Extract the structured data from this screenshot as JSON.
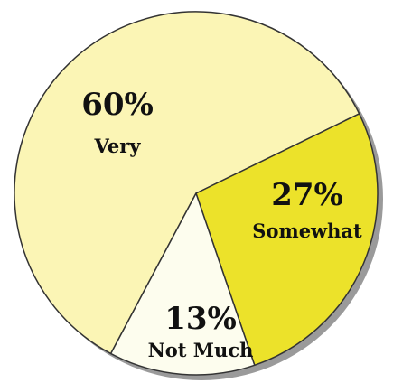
{
  "chart_data": {
    "type": "pie",
    "slices": [
      {
        "label": "Very",
        "value": 60,
        "value_label": "60%",
        "color": "#fbf5b5"
      },
      {
        "label": "Somewhat",
        "value": 27,
        "value_label": "27%",
        "color": "#ece22a"
      },
      {
        "label": "Not Much",
        "value": 13,
        "value_label": "13%",
        "color": "#fdfdee"
      }
    ],
    "start_angle_deg": 208,
    "direction": "clockwise",
    "outline_color": "#333333",
    "shadow_color": "#9a9a9a"
  }
}
